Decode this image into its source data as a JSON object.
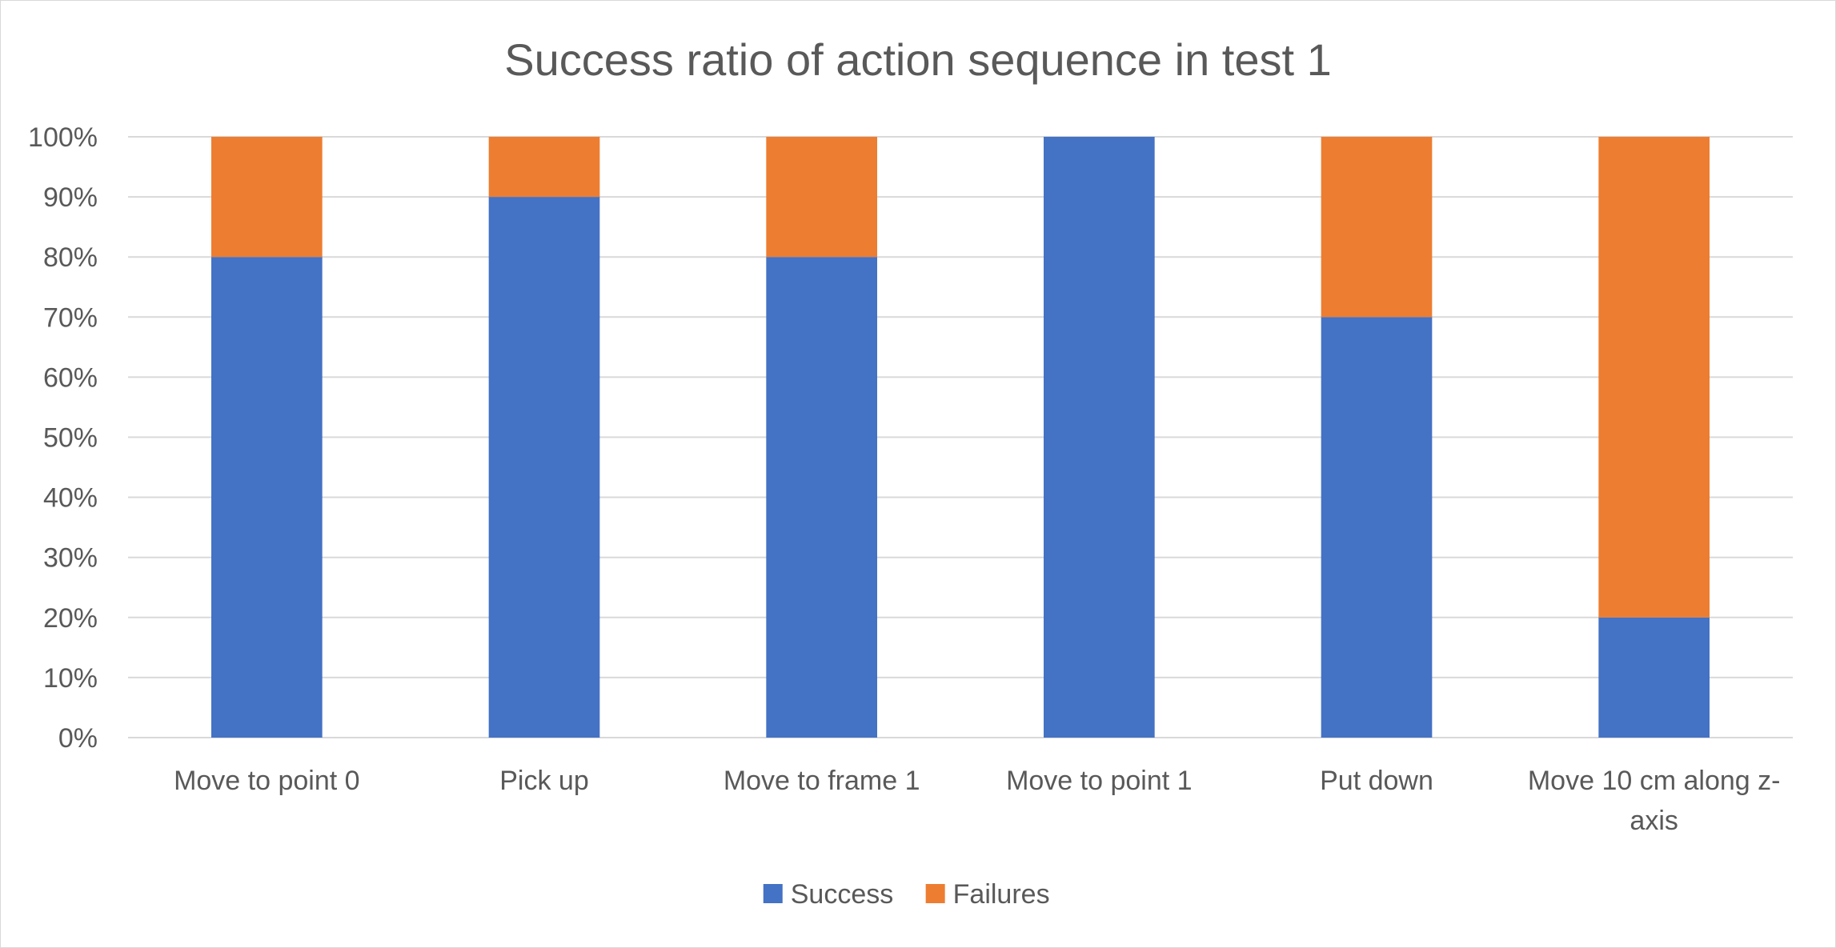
{
  "chart_data": {
    "type": "bar",
    "stacked": true,
    "title": "Success ratio of action sequence in test 1",
    "categories": [
      "Move to point 0",
      "Pick up",
      "Move to frame 1",
      "Move to point 1",
      "Put down",
      "Move 10 cm along z-axis"
    ],
    "category_lines": [
      [
        "Move to point 0"
      ],
      [
        "Pick up"
      ],
      [
        "Move to frame 1"
      ],
      [
        "Move to point 1"
      ],
      [
        "Put down"
      ],
      [
        "Move 10 cm along z-",
        "axis"
      ]
    ],
    "series": [
      {
        "name": "Success",
        "values": [
          80,
          90,
          80,
          100,
          70,
          20
        ],
        "color": "#4472C4"
      },
      {
        "name": "Failures",
        "values": [
          20,
          10,
          20,
          0,
          30,
          80
        ],
        "color": "#ED7D31"
      }
    ],
    "ylim": [
      0,
      100
    ],
    "yticks": [
      "0%",
      "10%",
      "20%",
      "30%",
      "40%",
      "50%",
      "60%",
      "70%",
      "80%",
      "90%",
      "100%"
    ],
    "grid": true,
    "legend": "bottom-center",
    "colors": {
      "grid": "#d9d9d9",
      "text": "#595959"
    }
  }
}
